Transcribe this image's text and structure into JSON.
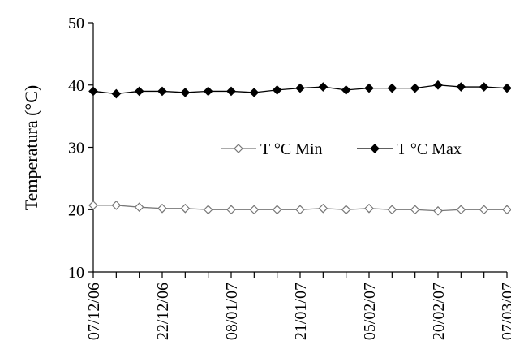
{
  "chart_data": {
    "type": "line",
    "ylabel": "Temperatura (°C)",
    "ylim": [
      10,
      50
    ],
    "yticks": [
      10,
      20,
      30,
      40,
      50
    ],
    "x_tick_labels": [
      "07/12/06",
      "22/12/06",
      "08/01/07",
      "21/01/07",
      "05/02/07",
      "20/02/07",
      "07/03/07"
    ],
    "x_tick_positions": [
      0,
      3,
      6,
      9,
      12,
      15,
      18
    ],
    "grid": false,
    "legend_position": "center-right",
    "series": [
      {
        "name": "T °C Min",
        "marker": "open-diamond",
        "color": "#000000",
        "values": [
          20.7,
          20.7,
          20.4,
          20.2,
          20.2,
          20.0,
          20.0,
          20.0,
          20.0,
          20.0,
          20.2,
          20.0,
          20.2,
          20.0,
          20.0,
          19.8,
          20.0,
          20.0,
          20.0
        ]
      },
      {
        "name": "T °C Max",
        "marker": "filled-diamond",
        "color": "#000000",
        "values": [
          39.0,
          38.6,
          39.0,
          39.0,
          38.8,
          39.0,
          39.0,
          38.8,
          39.2,
          39.5,
          39.7,
          39.2,
          39.5,
          39.5,
          39.5,
          40.0,
          39.7,
          39.7,
          39.5
        ]
      }
    ]
  }
}
